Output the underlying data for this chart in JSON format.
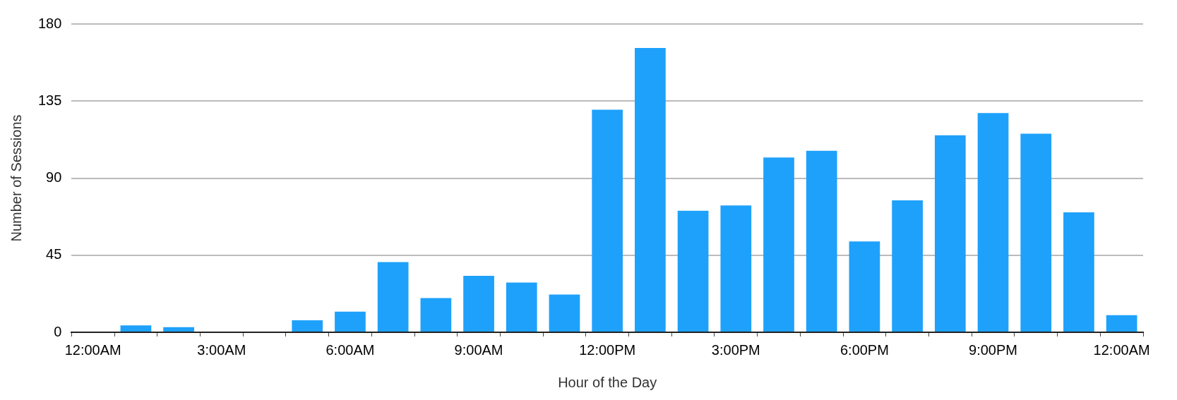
{
  "chart_data": {
    "type": "bar",
    "xlabel": "Hour of the Day",
    "ylabel": "Number of Sessions",
    "categories": [
      "12:00AM",
      null,
      null,
      "3:00AM",
      null,
      null,
      "6:00AM",
      null,
      null,
      "9:00AM",
      null,
      null,
      "12:00PM",
      null,
      null,
      "3:00PM",
      null,
      null,
      "6:00PM",
      null,
      null,
      "9:00PM",
      null,
      null,
      "12:00AM"
    ],
    "values": [
      0,
      4,
      3,
      0,
      0,
      7,
      12,
      41,
      20,
      33,
      29,
      22,
      130,
      166,
      71,
      74,
      102,
      106,
      53,
      77,
      115,
      128,
      116,
      70,
      10
    ],
    "color": "#1ea1fb",
    "ylim": [
      0,
      180
    ],
    "yticks": [
      0,
      45,
      90,
      135,
      180
    ],
    "grid": "y",
    "legend": false
  }
}
